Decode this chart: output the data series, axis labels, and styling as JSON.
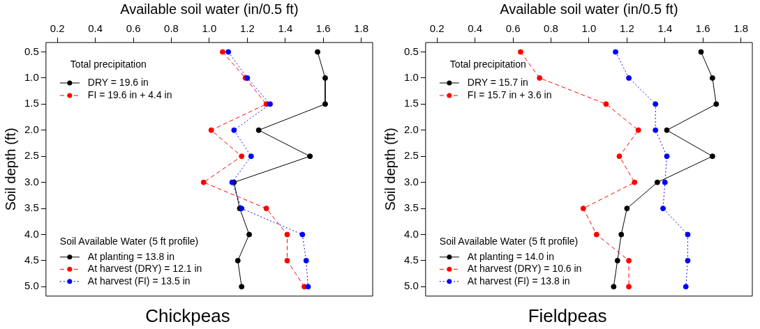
{
  "chart_data": [
    {
      "type": "line",
      "title": "Chickpeas",
      "xlabel": "Available soil water (in/0.5 ft)",
      "ylabel": "Soil depth (ft)",
      "legend": "bottom left",
      "legend_title": "Soil Available Water (5 ft profile)",
      "marker": "circle",
      "grid": false,
      "annotations": [
        "Total precipitation"
      ],
      "xlim": [
        0.14,
        1.86
      ],
      "xticks": [
        0.2,
        0.4,
        0.6,
        0.8,
        {
          "value": 1,
          "label": "1.0"
        },
        1.2,
        1.4,
        1.6,
        1.8
      ],
      "ylim": [
        5.18,
        0.32
      ],
      "yticks": [
        0.5,
        {
          "value": 1,
          "label": "1.0"
        },
        1.5,
        {
          "value": 2,
          "label": "2.0"
        },
        2.5,
        {
          "value": 3,
          "label": "3.0"
        },
        3.5,
        {
          "value": 4,
          "label": "4.0"
        },
        4.5,
        {
          "value": 5,
          "label": "5.0"
        }
      ],
      "series": [
        {
          "name": "DRY = 19.6 in",
          "color": "#000000",
          "line_style": "solid",
          "x": [
            null
          ],
          "values": [
            null
          ]
        },
        {
          "name": "FI = 19.6 in + 4.4 in",
          "color": "#ff0000",
          "line_style": "dashed",
          "x": [
            null
          ],
          "values": [
            null
          ]
        },
        {
          "name": "At planting = 13.8 in",
          "color": "#000000",
          "line_style": "solid",
          "x": [
            1.57,
            1.61,
            1.61,
            1.26,
            1.53,
            1.13,
            1.16,
            1.21,
            1.15,
            1.17
          ],
          "values": [
            0.5,
            1,
            1.5,
            2,
            2.5,
            3,
            3.5,
            4,
            4.5,
            5
          ]
        },
        {
          "name": "At harvest (DRY) = 12.1 in",
          "color": "#ff0000",
          "line_style": "dashed",
          "x": [
            1.07,
            1.19,
            1.3,
            1.01,
            1.17,
            0.97,
            1.3,
            1.41,
            1.41,
            1.5
          ],
          "values": [
            0.5,
            1,
            1.5,
            2,
            2.5,
            3,
            3.5,
            4,
            4.5,
            5
          ]
        },
        {
          "name": "At harvest (FI) = 13.5 in",
          "color": "#0000ff",
          "line_style": "dotted",
          "x": [
            1.1,
            1.2,
            1.32,
            1.13,
            1.22,
            1.12,
            1.17,
            1.49,
            1.51,
            1.52
          ],
          "values": [
            0.5,
            1,
            1.5,
            2,
            2.5,
            3,
            3.5,
            4,
            4.5,
            5
          ]
        }
      ]
    },
    {
      "type": "line",
      "title": "Fieldpeas",
      "xlabel": "Available soil water (in/0.5 ft)",
      "ylabel": "Soil depth (ft)",
      "legend": "bottom left",
      "legend_title": "Soil Available Water (5 ft profile)",
      "marker": "circle",
      "grid": false,
      "annotations": [
        "Total precipitation"
      ],
      "xlim": [
        0.14,
        1.86
      ],
      "xticks": [
        0.2,
        0.4,
        0.6,
        0.8,
        {
          "value": 1,
          "label": "1.0"
        },
        1.2,
        1.4,
        1.6,
        1.8
      ],
      "ylim": [
        5.18,
        0.32
      ],
      "yticks": [
        0.5,
        {
          "value": 1,
          "label": "1.0"
        },
        1.5,
        {
          "value": 2,
          "label": "2.0"
        },
        2.5,
        {
          "value": 3,
          "label": "3.0"
        },
        3.5,
        {
          "value": 4,
          "label": "4.0"
        },
        4.5,
        {
          "value": 5,
          "label": "5.0"
        }
      ],
      "series": [
        {
          "name": "DRY = 15.7 in",
          "color": "#000000",
          "line_style": "solid",
          "x": [
            null
          ],
          "values": [
            null
          ]
        },
        {
          "name": "FI = 15.7 in + 3.6 in",
          "color": "#ff0000",
          "line_style": "dashed",
          "x": [
            null
          ],
          "values": [
            null
          ]
        },
        {
          "name": "At planting = 14.0 in",
          "color": "#000000",
          "line_style": "solid",
          "x": [
            1.59,
            1.65,
            1.67,
            1.41,
            1.65,
            1.36,
            1.2,
            1.17,
            1.15,
            1.13
          ],
          "values": [
            0.5,
            1,
            1.5,
            2,
            2.5,
            3,
            3.5,
            4,
            4.5,
            5
          ]
        },
        {
          "name": "At harvest (DRY) = 10.6 in",
          "color": "#ff0000",
          "line_style": "dashed",
          "x": [
            0.64,
            0.74,
            1.09,
            1.26,
            1.16,
            1.24,
            0.97,
            1.04,
            1.21,
            1.21
          ],
          "values": [
            0.5,
            1,
            1.5,
            2,
            2.5,
            3,
            3.5,
            4,
            4.5,
            5
          ]
        },
        {
          "name": "At harvest (FI) = 13.8 in",
          "color": "#0000ff",
          "line_style": "dotted",
          "x": [
            1.14,
            1.21,
            1.35,
            1.35,
            1.41,
            1.4,
            1.39,
            1.52,
            1.52,
            1.51
          ],
          "values": [
            0.5,
            1,
            1.5,
            2,
            2.5,
            3,
            3.5,
            4,
            4.5,
            5
          ]
        }
      ]
    }
  ]
}
